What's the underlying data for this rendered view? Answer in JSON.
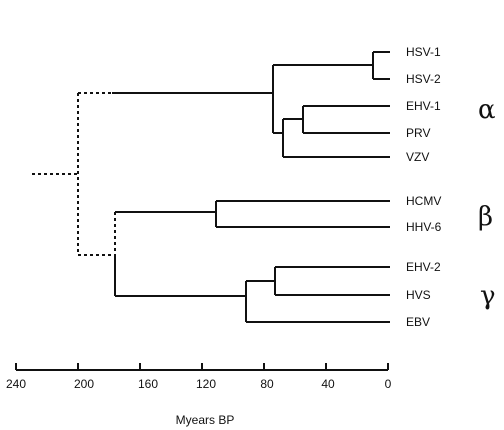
{
  "axis": {
    "title": "Myears BP",
    "ticks": [
      "240",
      "200",
      "160",
      "120",
      "80",
      "40",
      "0"
    ]
  },
  "groups": {
    "alpha": "α",
    "beta": "β",
    "gamma": "γ"
  },
  "taxa": {
    "hsv1": "HSV-1",
    "hsv2": "HSV-2",
    "ehv1": "EHV-1",
    "prv": "PRV",
    "vzv": "VZV",
    "hcmv": "HCMV",
    "hhv6": "HHV-6",
    "ehv2": "EHV-2",
    "hvs": "HVS",
    "ebv": "EBV"
  }
}
